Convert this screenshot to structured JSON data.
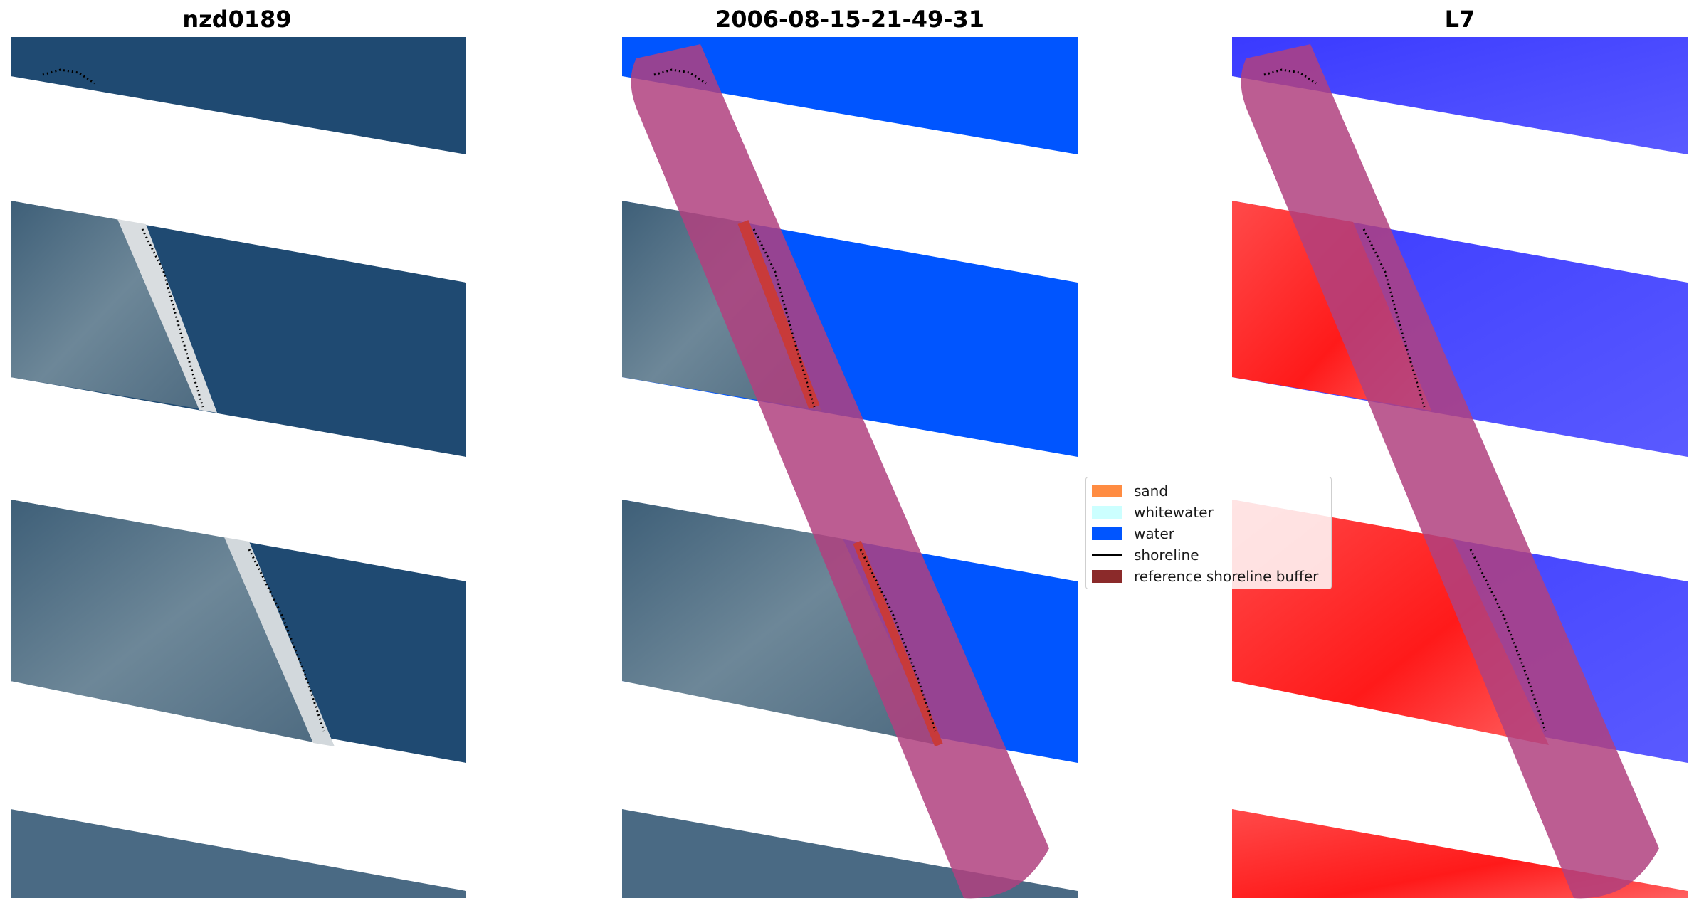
{
  "panels": [
    {
      "title": "nzd0189"
    },
    {
      "title": "2006-08-15-21-49-31"
    },
    {
      "title": "L7"
    }
  ],
  "legend": {
    "items": [
      {
        "label": "sand",
        "color": "#ff8c42",
        "kind": "patch"
      },
      {
        "label": "whitewater",
        "color": "#ccffff",
        "kind": "patch"
      },
      {
        "label": "water",
        "color": "#0055ff",
        "kind": "patch"
      },
      {
        "label": "shoreline",
        "color": "#000000",
        "kind": "line"
      },
      {
        "label": "reference shoreline buffer",
        "color": "#8b2a2a",
        "kind": "patch"
      }
    ]
  },
  "colors": {
    "rgb_water": "#1f4a72",
    "rgb_land": "#4f6f86",
    "classified_water": "#0055ff",
    "buffer_overlay": "#b0417f",
    "mndwi_land": "#ff1a1a",
    "mndwi_water": "#2a2aff",
    "shoreline": "#000000"
  }
}
